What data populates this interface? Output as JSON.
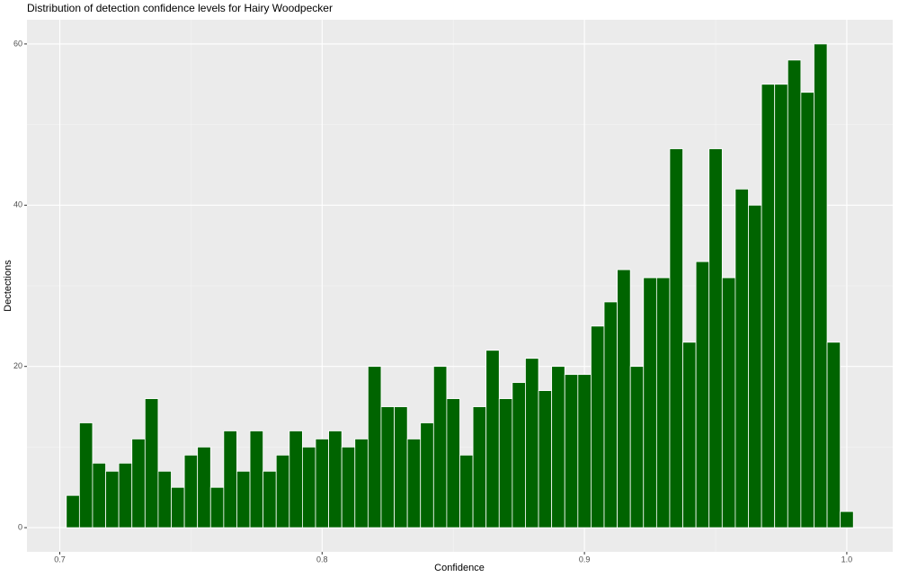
{
  "chart_data": {
    "type": "histogram",
    "title": "Distribution of detection confidence levels for Hairy Woodpecker",
    "x_label": "Confidence",
    "y_label": "Dectections",
    "bins": [
      0.7025,
      0.7075,
      0.7125,
      0.7175,
      0.7225,
      0.7275,
      0.7325,
      0.7375,
      0.7425,
      0.7475,
      0.7525,
      0.7575,
      0.7625,
      0.7675,
      0.7725,
      0.7775,
      0.7825,
      0.7875,
      0.7925,
      0.7975,
      0.8025,
      0.8075,
      0.8125,
      0.8175,
      0.8225,
      0.8275,
      0.8325,
      0.8375,
      0.8425,
      0.8475,
      0.8525,
      0.8575,
      0.8625,
      0.8675,
      0.8725,
      0.8775,
      0.8825,
      0.8875,
      0.8925,
      0.8975,
      0.9025,
      0.9075,
      0.9125,
      0.9175,
      0.9225,
      0.9275,
      0.9325,
      0.9375,
      0.9425,
      0.9475,
      0.9525,
      0.9575,
      0.9625,
      0.9675,
      0.9725,
      0.9775,
      0.9825,
      0.9875,
      0.9925,
      0.9975,
      1.0025
    ],
    "values": [
      4,
      13,
      8,
      7,
      8,
      11,
      16,
      7,
      5,
      9,
      10,
      5,
      12,
      7,
      12,
      7,
      9,
      12,
      10,
      11,
      12,
      10,
      11,
      20,
      15,
      15,
      11,
      13,
      20,
      16,
      9,
      15,
      22,
      16,
      18,
      21,
      17,
      20,
      19,
      19,
      25,
      28,
      32,
      20,
      31,
      31,
      47,
      23,
      33,
      47,
      31,
      42,
      40,
      55,
      55,
      58,
      54,
      60,
      23,
      2
    ],
    "color": "#006400",
    "xlim": [
      0.6875,
      1.0175
    ],
    "xticks": [
      0.7,
      0.8,
      0.9,
      {
        "value": 1,
        "label": "1.0"
      }
    ],
    "ylim": [
      -3,
      63
    ],
    "yticks": [
      0,
      20,
      40,
      60
    ],
    "grid": true
  }
}
